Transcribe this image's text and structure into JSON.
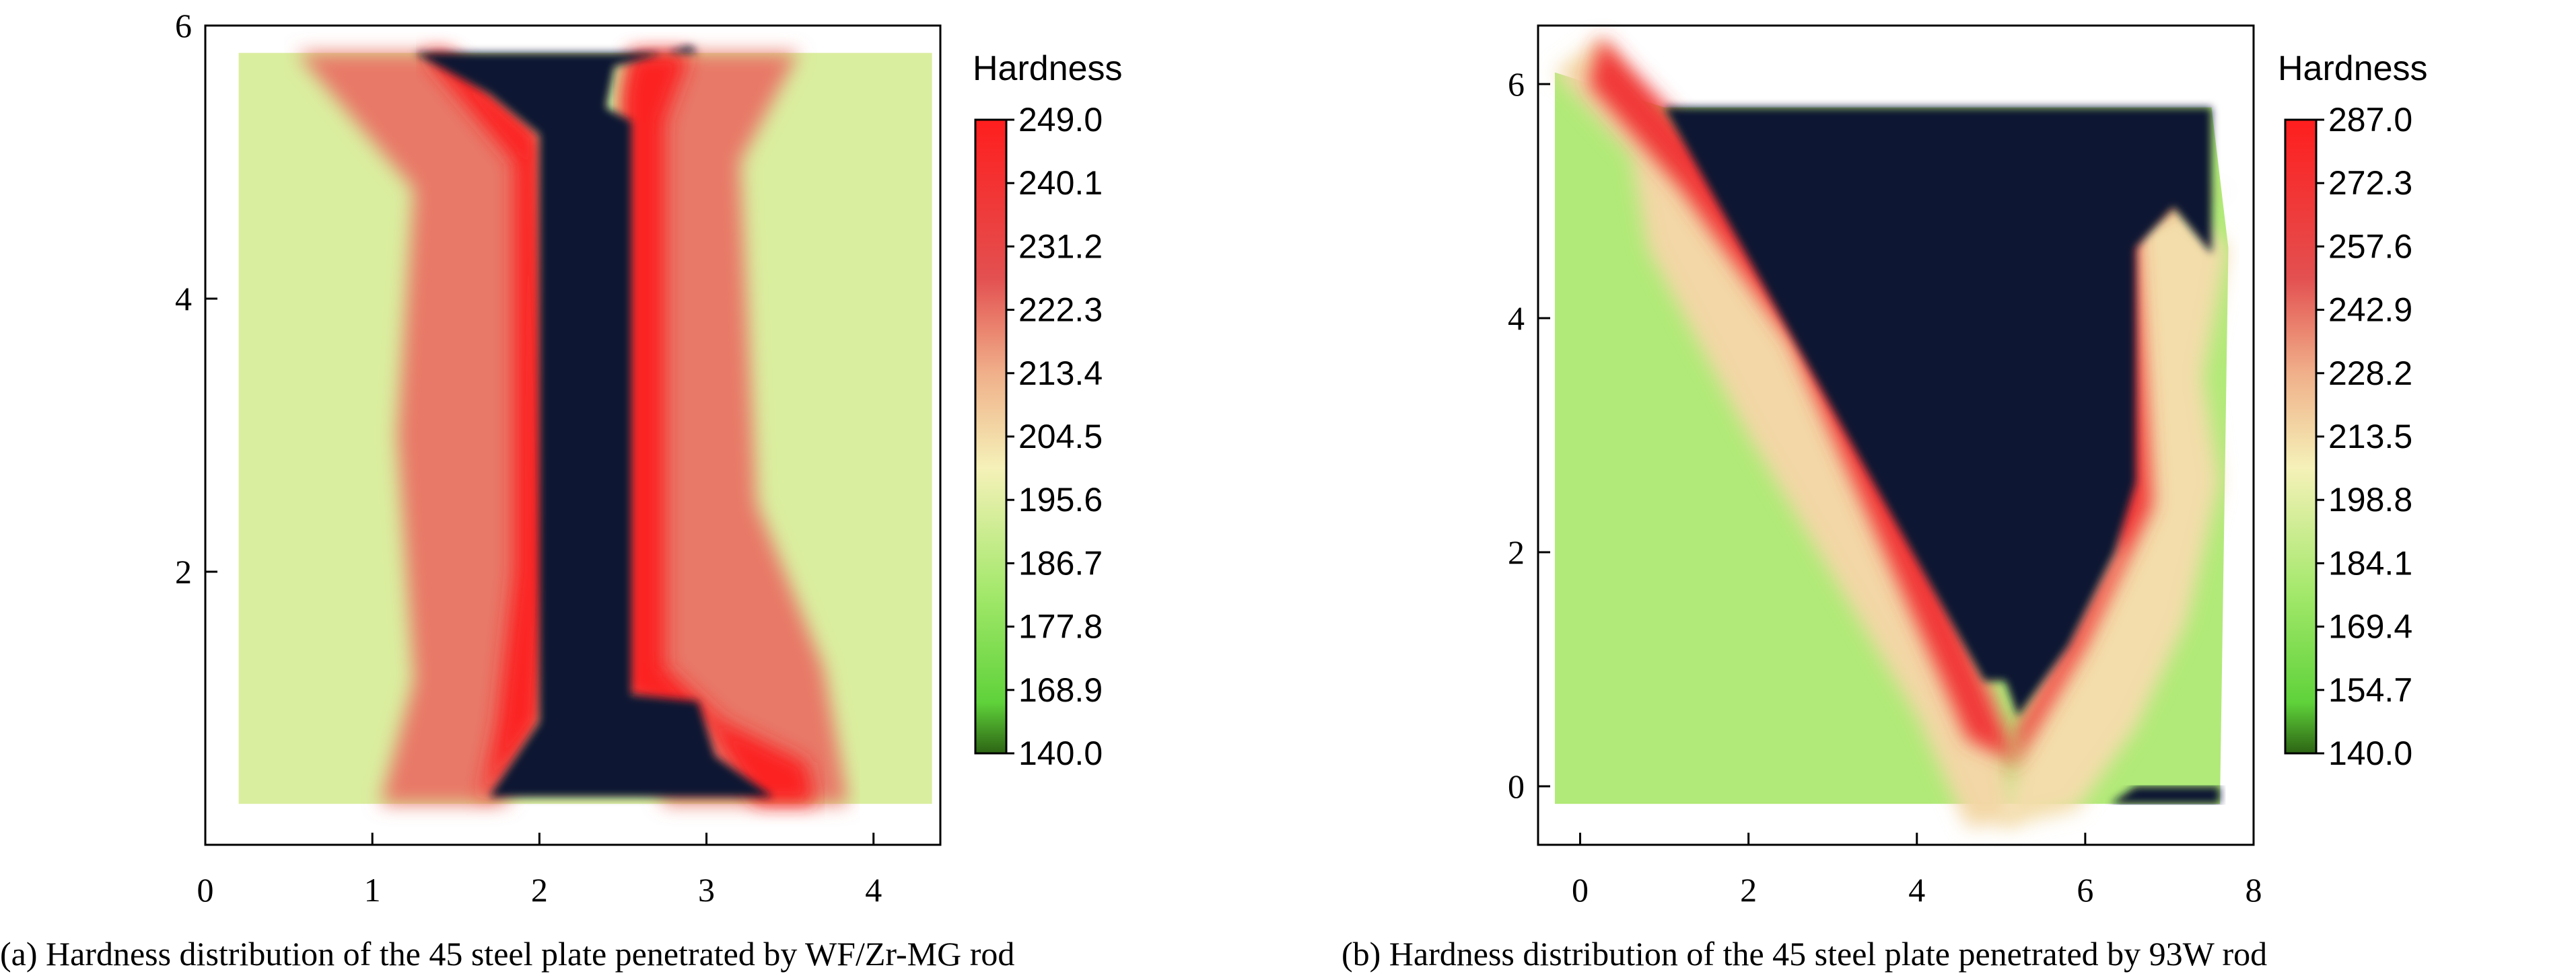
{
  "chart_data": [
    {
      "type": "heatmap",
      "title": "",
      "xlabel": "",
      "ylabel": "",
      "xlim": [
        0,
        4.4
      ],
      "ylim": [
        0,
        6
      ],
      "xticks": [
        "0",
        "1",
        "2",
        "3",
        "4"
      ],
      "xtick_values": [
        0,
        1,
        2,
        3,
        4
      ],
      "yticks": [
        "2",
        "4",
        "6"
      ],
      "ytick_values": [
        2,
        4,
        6
      ],
      "grid": false,
      "colorbar": {
        "title": "Hardness",
        "min": 140.0,
        "max": 249.0,
        "ticks": [
          "249.0",
          "240.1",
          "231.2",
          "222.3",
          "213.4",
          "204.5",
          "195.6",
          "186.7",
          "177.8",
          "168.9",
          "140.0"
        ]
      },
      "caption": "(a) Hardness distribution of the 45 steel plate penetrated by WF/Zr-MG rod",
      "regions": [
        {
          "name": "plate",
          "points": [
            [
              0.2,
              5.8
            ],
            [
              4.35,
              5.8
            ],
            [
              4.35,
              0.3
            ],
            [
              0.2,
              0.3
            ]
          ],
          "value": 182
        },
        {
          "name": "left-zone",
          "points": [
            [
              0.55,
              5.8
            ],
            [
              1.45,
              5.8
            ],
            [
              2.0,
              5.2
            ],
            [
              2.05,
              2.0
            ],
            [
              2.0,
              0.9
            ],
            [
              1.8,
              0.3
            ],
            [
              1.05,
              0.3
            ],
            [
              1.25,
              1.2
            ],
            [
              1.15,
              3.0
            ],
            [
              1.25,
              4.8
            ]
          ],
          "value": 215
        },
        {
          "name": "left-rim",
          "points": [
            [
              1.45,
              5.8
            ],
            [
              2.0,
              5.2
            ],
            [
              2.05,
              2.0
            ],
            [
              2.0,
              0.9
            ],
            [
              1.65,
              0.3
            ],
            [
              1.75,
              0.9
            ],
            [
              1.85,
              2.0
            ],
            [
              1.85,
              5.0
            ],
            [
              1.3,
              5.8
            ]
          ],
          "value": 246
        },
        {
          "name": "right-zone",
          "points": [
            [
              2.55,
              5.8
            ],
            [
              3.55,
              5.8
            ],
            [
              3.2,
              5.0
            ],
            [
              3.3,
              2.5
            ],
            [
              3.7,
              1.3
            ],
            [
              3.85,
              0.3
            ],
            [
              2.75,
              0.3
            ],
            [
              2.5,
              1.1
            ],
            [
              2.5,
              5.5
            ]
          ],
          "value": 215
        },
        {
          "name": "right-rim",
          "points": [
            [
              2.55,
              5.8
            ],
            [
              2.9,
              5.8
            ],
            [
              2.75,
              5.3
            ],
            [
              2.75,
              1.3
            ],
            [
              3.1,
              0.9
            ],
            [
              3.6,
              0.6
            ],
            [
              3.65,
              0.3
            ],
            [
              3.3,
              0.3
            ],
            [
              3.0,
              0.9
            ],
            [
              2.5,
              1.1
            ],
            [
              2.5,
              5.5
            ]
          ],
          "value": 246
        },
        {
          "name": "hole",
          "points": [
            [
              1.25,
              5.8
            ],
            [
              2.95,
              5.8
            ],
            [
              2.9,
              5.85
            ],
            [
              2.45,
              5.7
            ],
            [
              2.4,
              5.4
            ],
            [
              2.55,
              5.3
            ],
            [
              2.55,
              1.1
            ],
            [
              2.95,
              1.05
            ],
            [
              3.05,
              0.65
            ],
            [
              3.4,
              0.35
            ],
            [
              1.7,
              0.35
            ],
            [
              2.0,
              0.9
            ],
            [
              2.0,
              5.2
            ],
            [
              1.7,
              5.5
            ]
          ],
          "value": null
        }
      ]
    },
    {
      "type": "heatmap",
      "title": "",
      "xlabel": "",
      "ylabel": "",
      "xlim": [
        -0.5,
        8
      ],
      "ylim": [
        -0.5,
        6.5
      ],
      "xticks": [
        "0",
        "2",
        "4",
        "6",
        "8"
      ],
      "xtick_values": [
        0,
        2,
        4,
        6,
        8
      ],
      "yticks": [
        "0",
        "2",
        "4",
        "6"
      ],
      "ytick_values": [
        0,
        2,
        4,
        6
      ],
      "grid": false,
      "colorbar": {
        "title": "Hardness",
        "min": 140.0,
        "max": 287.0,
        "ticks": [
          "287.0",
          "272.3",
          "257.6",
          "242.9",
          "228.2",
          "213.5",
          "198.8",
          "184.1",
          "169.4",
          "154.7",
          "140.0"
        ]
      },
      "caption": "(b) Hardness distribution of the 45 steel plate penetrated by 93W rod",
      "regions": [
        {
          "name": "plate",
          "points": [
            [
              -0.3,
              6.1
            ],
            [
              1.0,
              5.8
            ],
            [
              7.5,
              5.8
            ],
            [
              7.7,
              4.6
            ],
            [
              7.6,
              -0.15
            ],
            [
              -0.3,
              -0.15
            ]
          ],
          "value": 182
        },
        {
          "name": "left-band",
          "points": [
            [
              -0.3,
              6.1
            ],
            [
              0.25,
              6.4
            ],
            [
              1.1,
              5.4
            ],
            [
              2.4,
              4.8
            ],
            [
              4.8,
              0.9
            ],
            [
              5.0,
              0.4
            ],
            [
              5.2,
              -0.3
            ],
            [
              4.6,
              -0.35
            ],
            [
              4.0,
              0.6
            ],
            [
              2.0,
              3.0
            ],
            [
              0.8,
              4.6
            ],
            [
              0.6,
              5.4
            ]
          ],
          "value": 215
        },
        {
          "name": "left-rim",
          "points": [
            [
              0.25,
              6.4
            ],
            [
              1.3,
              5.6
            ],
            [
              2.5,
              4.9
            ],
            [
              4.8,
              0.9
            ],
            [
              5.2,
              0.2
            ],
            [
              4.6,
              0.4
            ],
            [
              4.3,
              0.9
            ],
            [
              2.5,
              3.8
            ],
            [
              1.2,
              5.1
            ],
            [
              0.1,
              6.0
            ]
          ],
          "value": 268
        },
        {
          "name": "right-band",
          "points": [
            [
              5.0,
              -0.35
            ],
            [
              5.9,
              -0.2
            ],
            [
              6.6,
              0.5
            ],
            [
              7.2,
              1.4
            ],
            [
              7.6,
              2.6
            ],
            [
              7.4,
              3.5
            ],
            [
              7.7,
              4.6
            ],
            [
              7.1,
              5.0
            ],
            [
              5.8,
              4.6
            ],
            [
              5.5,
              4.4
            ],
            [
              6.2,
              2.0
            ],
            [
              5.4,
              0.9
            ]
          ],
          "value": 213
        },
        {
          "name": "right-rim",
          "points": [
            [
              5.1,
              0.1
            ],
            [
              6.0,
              1.2
            ],
            [
              6.8,
              2.4
            ],
            [
              6.6,
              4.8
            ],
            [
              7.3,
              5.05
            ],
            [
              7.75,
              5.1
            ],
            [
              6.6,
              5.0
            ],
            [
              5.75,
              4.6
            ],
            [
              5.6,
              4.4
            ],
            [
              6.35,
              2.0
            ],
            [
              5.6,
              1.0
            ],
            [
              5.2,
              0.5
            ]
          ],
          "value": 268
        },
        {
          "name": "hole",
          "points": [
            [
              1.0,
              5.8
            ],
            [
              7.5,
              5.8
            ],
            [
              7.5,
              4.55
            ],
            [
              7.05,
              4.95
            ],
            [
              6.6,
              4.6
            ],
            [
              6.6,
              2.6
            ],
            [
              6.35,
              2.0
            ],
            [
              5.8,
              1.2
            ],
            [
              5.2,
              0.6
            ],
            [
              5.05,
              0.9
            ],
            [
              4.8,
              0.9
            ]
          ],
          "value": null
        },
        {
          "name": "bottom-gap",
          "points": [
            [
              6.6,
              0.0
            ],
            [
              7.6,
              0.0
            ],
            [
              7.6,
              -0.15
            ],
            [
              6.3,
              -0.15
            ]
          ],
          "value": null
        }
      ]
    }
  ]
}
